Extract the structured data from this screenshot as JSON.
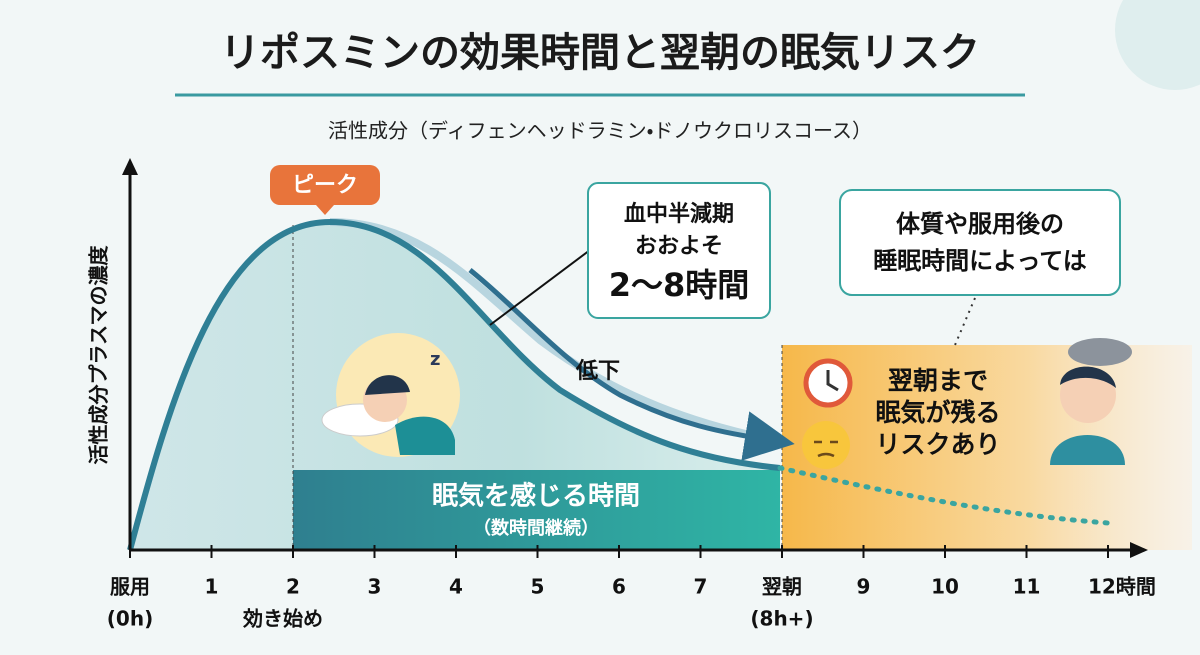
{
  "header": {
    "title": "リポスミンの効果時間と翌朝の眠気リスク",
    "subtitle": "活性成分（ディフェンヘッドラミン・ドノウクロリスコース）"
  },
  "y_axis_label": "活性成分プラスマの濃度",
  "peak_label": "ピーク",
  "half_life_callout": [
    "血中半減期",
    "おおよそ",
    "2〜8時間"
  ],
  "condition_callout": [
    "体質や服用後の",
    "睡眠時間によっては"
  ],
  "decline_label": "低下",
  "drowsy_band": [
    "眠気を感じる時間",
    "（数時間継続）"
  ],
  "risk_box": [
    "翌朝まで",
    "眠気が残る",
    "リスクあり"
  ],
  "x_axis": {
    "ticks": [
      "服用",
      "1",
      "2",
      "3",
      "4",
      "5",
      "6",
      "7",
      "翌朝",
      "9",
      "10",
      "11",
      "12時間"
    ],
    "sublabels": [
      {
        "tick": 0,
        "text": "(0h)"
      },
      {
        "tick": 2,
        "text": "効き始め"
      },
      {
        "tick": 8,
        "text": "(8h+)"
      }
    ]
  }
}
